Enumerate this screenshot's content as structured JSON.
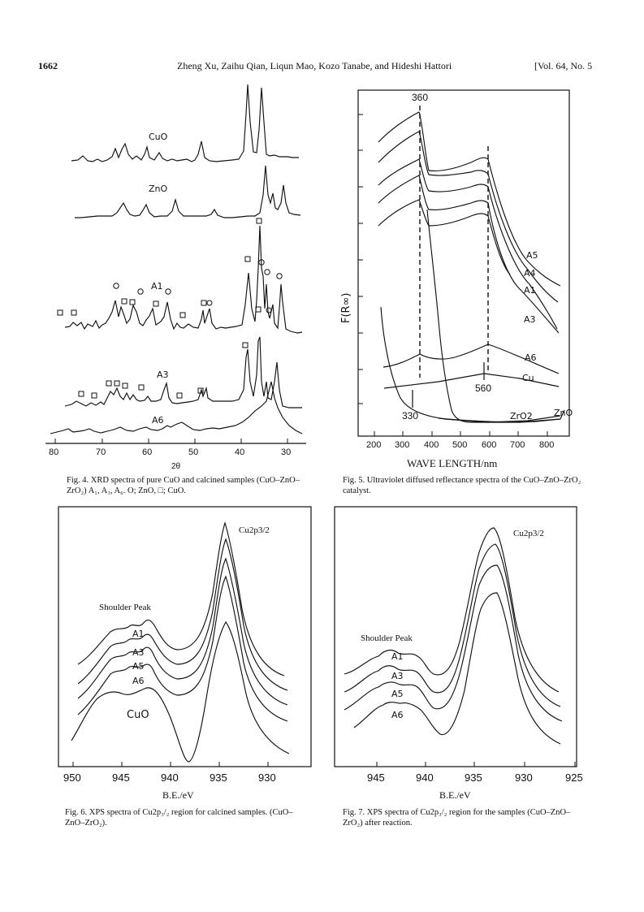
{
  "header": {
    "page_number": "1662",
    "authors": "Zheng Xu, Zaihu Qian, Liqun Mao, Kozo Tanabe, and Hideshi Hattori",
    "volume": "[Vol. 64, No. 5"
  },
  "fig4": {
    "caption": "Fig. 4.  XRD spectra of pure CuO and calcined samples (CuO–ZnO–ZrO₂) A₁, A₃, A₆.  O; ZnO, □; CuO.",
    "xlabel": "2θ",
    "ticks": [
      "80",
      "70",
      "60",
      "50",
      "40",
      "30"
    ],
    "labels": [
      "CuO",
      "ZnO",
      "A1",
      "A3",
      "A6"
    ]
  },
  "fig5": {
    "caption": "Fig. 5.  Ultraviolet diffused reflectance spectra of the CuO–ZnO–ZrO₂ catalyst.",
    "xlabel": "WAVE LENGTH/nm",
    "ylabel": "F(R∞)",
    "ticks": [
      "200",
      "300",
      "400",
      "500",
      "600",
      "700",
      "800"
    ],
    "peak_labels": [
      "360",
      "560",
      "330"
    ],
    "series_labels": [
      "A5",
      "A4",
      "A1",
      "A3",
      "A6",
      "Cu",
      "ZrO2",
      "ZnO"
    ]
  },
  "fig6": {
    "caption": "Fig. 6.  XPS spectra of Cu2p₃/₂ region for calcined samples.  (CuO–ZnO–ZrO₂).",
    "xlabel": "B.E./eV",
    "ticks": [
      "950",
      "945",
      "940",
      "935",
      "930"
    ],
    "peak_label": "Cu2p3/2",
    "shoulder_label": "Shoulder Peak",
    "series_labels": [
      "A1",
      "A3",
      "A5",
      "A6",
      "CuO"
    ]
  },
  "fig7": {
    "caption": "Fig. 7.  XPS spectra of Cu2p₃/₂ region for the samples (CuO–ZnO–ZrO₂) after reaction.",
    "xlabel": "B.E./eV",
    "ticks": [
      "945",
      "940",
      "935",
      "930",
      "925"
    ],
    "peak_label": "Cu2p3/2",
    "shoulder_label": "Shoulder Peak",
    "series_labels": [
      "A1",
      "A3",
      "A5",
      "A6"
    ]
  }
}
